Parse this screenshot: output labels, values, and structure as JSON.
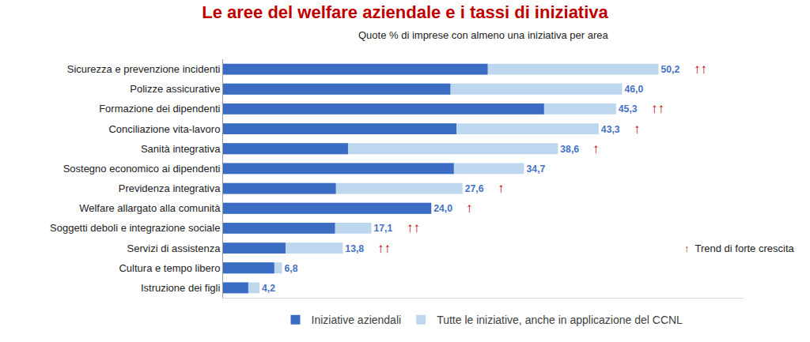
{
  "chart_data": {
    "type": "bar",
    "orientation": "horizontal",
    "title": "Le aree del welfare aziendale e i tassi di iniziativa",
    "subtitle": "Quote % di imprese con almeno una iniziativa per area",
    "categories": [
      "Sicurezza e prevenzione incidenti",
      "Polizze assicurative",
      "Formazione dei dipendenti",
      "Conciliazione vita-lavoro",
      "Sanità integrativa",
      "Sostegno economico ai dipendenti",
      "Previdenza integrativa",
      "Welfare allargato alla comunità",
      "Soggetti deboli e integrazione sociale",
      "Servizi di assistenza",
      "Cultura e tempo libero",
      "Istruzione dei figli"
    ],
    "series": [
      {
        "name": "Iniziative aziendali",
        "color": "#3b6cc4",
        "values": [
          30.5,
          26.2,
          37.0,
          26.9,
          14.4,
          26.6,
          13.0,
          24.0,
          12.9,
          7.2,
          5.9,
          2.9
        ]
      },
      {
        "name": "Tutte le iniziative, anche in applicazione del CCNL",
        "color": "#bdd7ee",
        "values": [
          50.2,
          46.0,
          45.3,
          43.3,
          38.6,
          34.7,
          27.6,
          24.0,
          17.1,
          13.8,
          6.8,
          4.2
        ],
        "value_labels": [
          "50,2",
          "46,0",
          "45,3",
          "43,3",
          "38,6",
          "34,7",
          "27,6",
          "24,0",
          "17,1",
          "13,8",
          "6,8",
          "4,2"
        ]
      }
    ],
    "trend": [
      "↑↑",
      null,
      "↑↑",
      "↑",
      "↑",
      null,
      "↑",
      "↑",
      "↑↑",
      "↑↑",
      null,
      null
    ],
    "trend_legend": {
      "symbol": "↑",
      "text": "Trend di forte crescita"
    },
    "xlim": [
      0,
      60
    ],
    "data_labels": true,
    "tick_labels": "y",
    "grid": false,
    "stacked": false,
    "legend": "bottom"
  }
}
